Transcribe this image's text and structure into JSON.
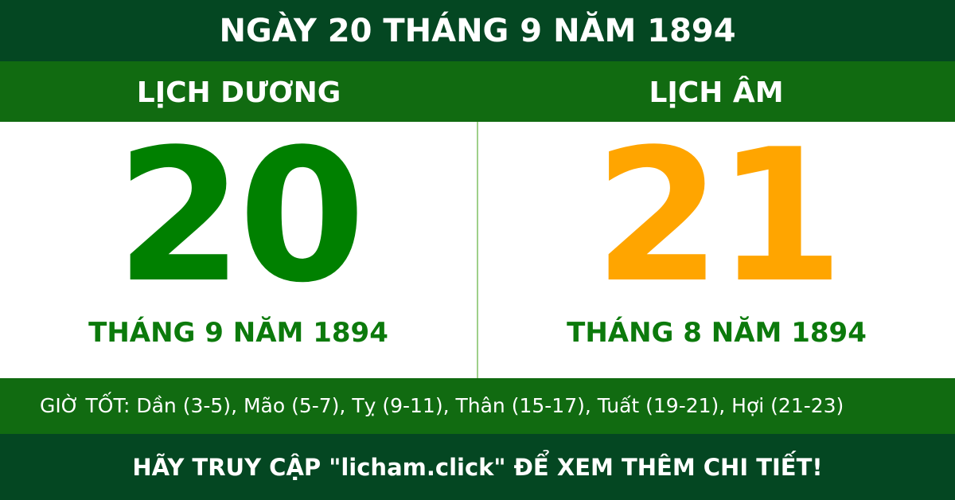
{
  "title": "NGÀY 20 THÁNG 9 NĂM 1894",
  "solar": {
    "label": "LỊCH DƯƠNG",
    "day": "20",
    "month_year": "THÁNG 9 NĂM 1894"
  },
  "lunar": {
    "label": "LỊCH ÂM",
    "day": "21",
    "month_year": "THÁNG 8 NĂM 1894"
  },
  "good_hours": "GIỜ TỐT: Dần (3-5), Mão (5-7), Tỵ (9-11), Thân (15-17), Tuất (19-21), Hợi (21-23)",
  "footer": "HÃY TRUY CẬP \"licham.click\" ĐỂ XEM THÊM CHI TIẾT!",
  "colors": {
    "dark_green": "#044722",
    "green": "#116b11",
    "solar_day": "#008000",
    "lunar_day": "#ffa500"
  }
}
